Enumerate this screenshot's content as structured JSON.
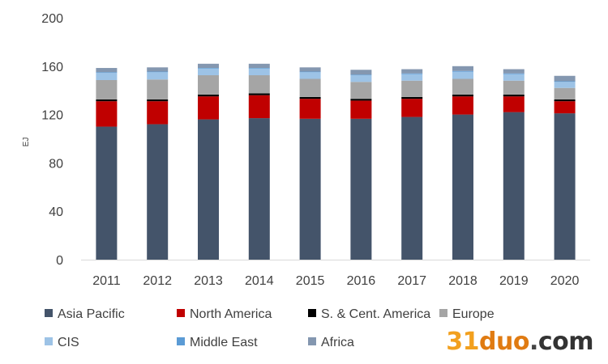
{
  "chart_data": {
    "type": "bar",
    "stacked": true,
    "title": "",
    "xlabel": "",
    "ylabel": "EJ",
    "ylim": [
      0,
      200
    ],
    "yticks": [
      0,
      40,
      80,
      120,
      160,
      200
    ],
    "grid": false,
    "legend_position": "bottom",
    "categories": [
      "2011",
      "2012",
      "2013",
      "2014",
      "2015",
      "2016",
      "2017",
      "2018",
      "2019",
      "2020"
    ],
    "series": [
      {
        "name": "Asia Pacific",
        "color": "#44546a",
        "values": [
          110,
          112,
          116,
          117,
          116.5,
          116.5,
          118,
          120,
          122,
          121
        ]
      },
      {
        "name": "North America",
        "color": "#c00000",
        "values": [
          21,
          19,
          19,
          19,
          16.5,
          15,
          15,
          15,
          13,
          10
        ]
      },
      {
        "name": "S. & Cent. America",
        "color": "#000000",
        "values": [
          1.5,
          1.5,
          1.5,
          1.5,
          1.5,
          1.5,
          1.5,
          1.5,
          1.5,
          1.5
        ]
      },
      {
        "name": "Europe",
        "color": "#a5a5a5",
        "values": [
          16,
          16.5,
          16,
          15,
          15,
          14,
          13.5,
          13,
          11.5,
          9.5
        ]
      },
      {
        "name": "CIS",
        "color": "#9dc3e6",
        "values": [
          6,
          6,
          5.5,
          5.5,
          5.5,
          5.5,
          5.5,
          6,
          5.5,
          5
        ]
      },
      {
        "name": "Middle East",
        "color": "#5b9bd5",
        "values": [
          0.5,
          0.5,
          0.5,
          0.5,
          0.5,
          0.5,
          0.5,
          0.5,
          0.5,
          0.5
        ]
      },
      {
        "name": "Africa",
        "color": "#8497b0",
        "values": [
          3.5,
          3.5,
          3.5,
          3.5,
          3.5,
          4,
          3.5,
          4,
          3.5,
          4.5
        ]
      }
    ]
  },
  "watermark": {
    "num": "31",
    "word": "duo",
    "dot": ".",
    "tld": "com"
  }
}
